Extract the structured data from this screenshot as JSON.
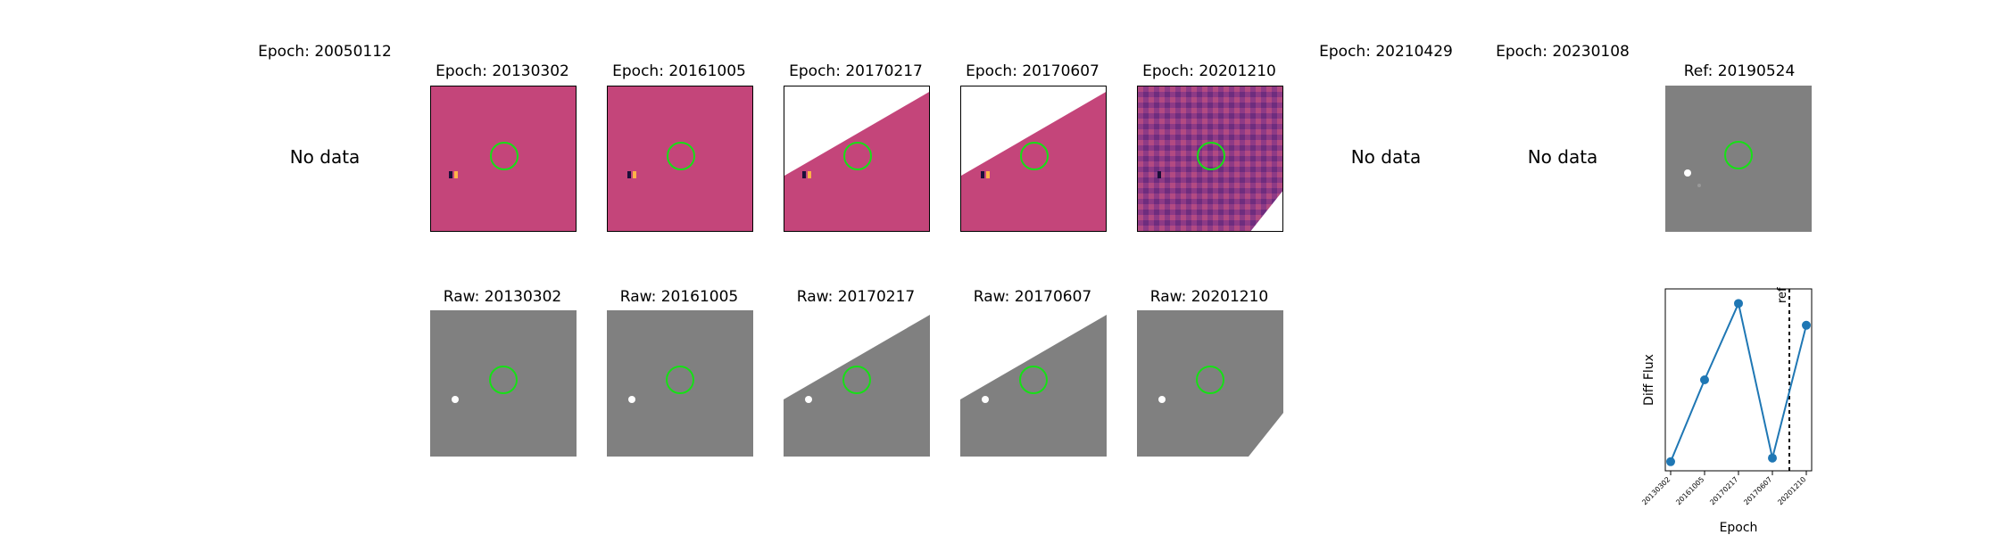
{
  "diff_row": [
    {
      "title": "Epoch: 20050112",
      "status": "No data"
    },
    {
      "title": "Epoch: 20130302",
      "variant": "full"
    },
    {
      "title": "Epoch: 20161005",
      "variant": "full"
    },
    {
      "title": "Epoch: 20170217",
      "variant": "diag"
    },
    {
      "title": "Epoch: 20170607",
      "variant": "diag"
    },
    {
      "title": "Epoch: 20201210",
      "variant": "noisy"
    },
    {
      "title": "Epoch: 20210429",
      "status": "No data"
    },
    {
      "title": "Epoch: 20230108",
      "status": "No data"
    },
    {
      "title": "Ref: 20190524",
      "variant": "ref"
    }
  ],
  "raw_row": [
    {
      "title": "Raw: 20130302",
      "variant": "full"
    },
    {
      "title": "Raw: 20161005",
      "variant": "full"
    },
    {
      "title": "Raw: 20170217",
      "variant": "diag"
    },
    {
      "title": "Raw: 20170607",
      "variant": "diag"
    },
    {
      "title": "Raw: 20201210",
      "variant": "corner"
    }
  ],
  "chart_data": {
    "type": "line",
    "x": [
      "20130302",
      "20161005",
      "20170217",
      "20170607",
      "20201210"
    ],
    "y": [
      0.05,
      0.5,
      0.92,
      0.07,
      0.8
    ],
    "xlabel": "Epoch",
    "ylabel": "Diff Flux",
    "ref_marker": {
      "label": "ref",
      "position_between": [
        "20170607",
        "20201210"
      ],
      "fraction": 0.5
    },
    "color": "#1f77b4",
    "grid": false
  },
  "colors": {
    "circle": "#16e016",
    "series": "#1f77b4"
  }
}
